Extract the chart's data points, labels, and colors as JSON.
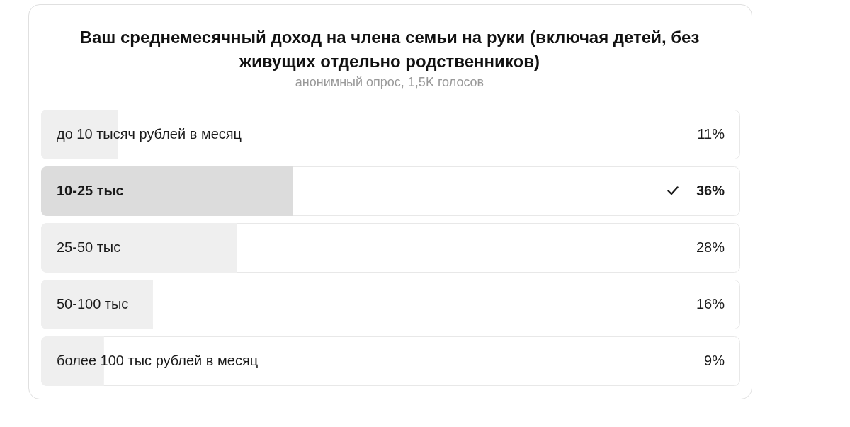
{
  "chart_data": {
    "type": "bar",
    "orientation": "horizontal",
    "title": "Ваш среднемесячный доход на члена семьи на руки (включая детей, без живущих отдельно родственников)",
    "subtitle": "анонимный опрос, 1,5K голосов",
    "categories": [
      "до 10 тысяч рублей в месяц",
      "10-25 тыс",
      "25-50 тыс",
      "50-100 тыс",
      "более 100 тыс рублей в месяц"
    ],
    "values": [
      11,
      36,
      28,
      16,
      9
    ],
    "colors": [
      "#efefef",
      "#dcdcdc",
      "#efefef",
      "#efefef",
      "#efefef"
    ],
    "value_labels": [
      "11%",
      "36%",
      "28%",
      "16%",
      "9%"
    ],
    "xlim": [
      0,
      100
    ]
  }
}
